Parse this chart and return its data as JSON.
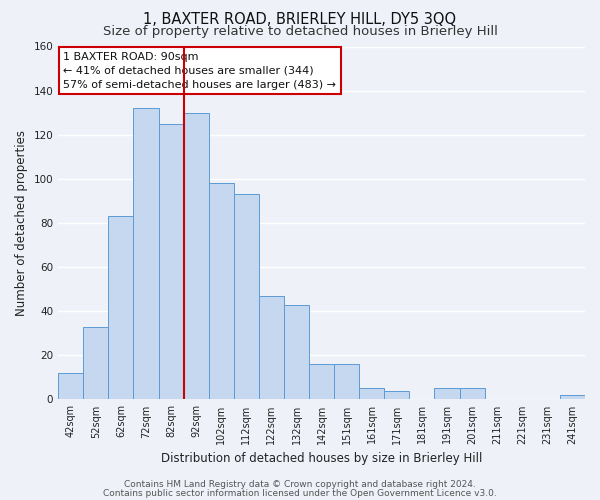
{
  "title_line1": "1, BAXTER ROAD, BRIERLEY HILL, DY5 3QQ",
  "title_line2": "Size of property relative to detached houses in Brierley Hill",
  "xlabel": "Distribution of detached houses by size in Brierley Hill",
  "ylabel": "Number of detached properties",
  "bar_labels": [
    "42sqm",
    "52sqm",
    "62sqm",
    "72sqm",
    "82sqm",
    "92sqm",
    "102sqm",
    "112sqm",
    "122sqm",
    "132sqm",
    "142sqm",
    "151sqm",
    "161sqm",
    "171sqm",
    "181sqm",
    "191sqm",
    "201sqm",
    "211sqm",
    "221sqm",
    "231sqm",
    "241sqm"
  ],
  "bar_values": [
    12,
    33,
    83,
    132,
    125,
    130,
    98,
    93,
    47,
    43,
    16,
    16,
    5,
    4,
    0,
    5,
    5,
    0,
    0,
    0,
    2
  ],
  "bar_color": "#c5d8f0",
  "bar_edge_color": "#5b9bd5",
  "vline_color": "#cc0000",
  "annotation_title": "1 BAXTER ROAD: 90sqm",
  "annotation_line2": "← 41% of detached houses are smaller (344)",
  "annotation_line3": "57% of semi-detached houses are larger (483) →",
  "annotation_box_color": "#cc0000",
  "annotation_bg": "#ffffff",
  "ylim": [
    0,
    160
  ],
  "yticks": [
    0,
    20,
    40,
    60,
    80,
    100,
    120,
    140,
    160
  ],
  "footer_line1": "Contains HM Land Registry data © Crown copyright and database right 2024.",
  "footer_line2": "Contains public sector information licensed under the Open Government Licence v3.0.",
  "bg_color": "#eef2f8",
  "plot_bg_color": "#eef2f8",
  "grid_color": "#ffffff",
  "title_fontsize": 10.5,
  "subtitle_fontsize": 9.5,
  "axis_label_fontsize": 8.5,
  "tick_fontsize": 7,
  "footer_fontsize": 6.5,
  "annotation_fontsize": 8.0
}
